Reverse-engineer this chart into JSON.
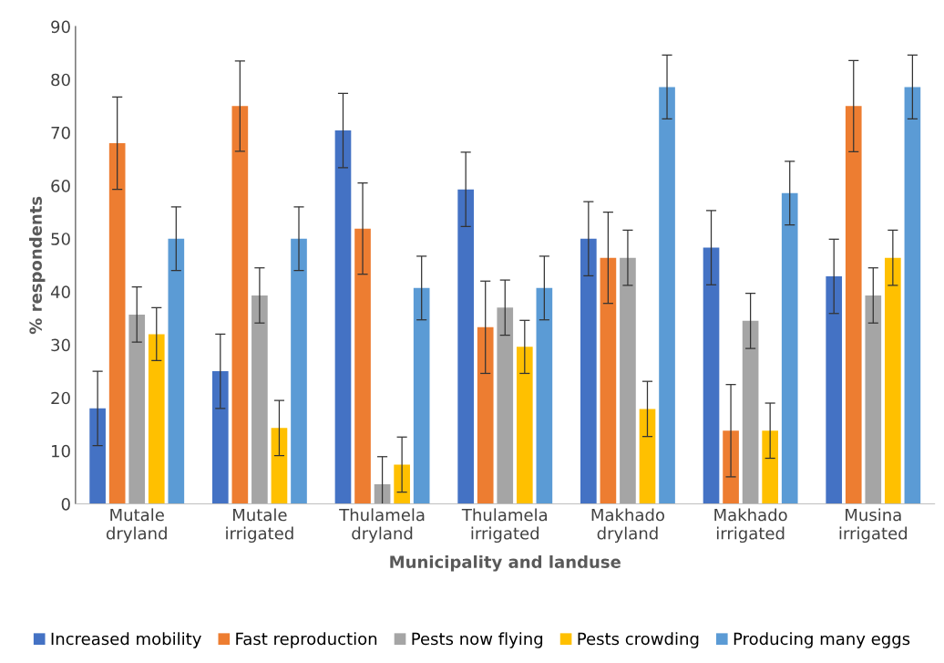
{
  "chart_data": {
    "type": "bar",
    "xlabel": "Municipality and landuse",
    "ylabel": "% respondents",
    "categories": [
      "Mutale\ndryland",
      "Mutale\nirrigated",
      "Thulamela\ndryland",
      "Thulamela\nirrigated",
      "Makhado\ndryland",
      "Makhado\nirrigated",
      "Musina\nirrigated"
    ],
    "series": [
      {
        "name": "Increased mobility",
        "color": "#4472c4",
        "values": [
          18,
          25,
          70.4,
          59.3,
          50,
          48.3,
          42.9
        ],
        "errors": [
          7,
          7,
          7,
          7,
          7,
          7,
          7
        ]
      },
      {
        "name": "Fast reproduction",
        "color": "#ed7d31",
        "values": [
          68,
          75,
          51.9,
          33.3,
          46.4,
          13.8,
          75
        ],
        "errors": [
          8.7,
          8.5,
          8.6,
          8.7,
          8.6,
          8.7,
          8.6
        ]
      },
      {
        "name": "Pests now flying",
        "color": "#a5a5a5",
        "values": [
          35.7,
          39.3,
          3.7,
          37,
          46.4,
          34.5,
          39.3
        ],
        "errors": [
          5.2,
          5.2,
          5.2,
          5.2,
          5.2,
          5.2,
          5.2
        ]
      },
      {
        "name": "Pests crowding",
        "color": "#ffc000",
        "values": [
          32,
          14.3,
          7.4,
          29.6,
          17.9,
          13.8,
          46.4
        ],
        "errors": [
          5,
          5.2,
          5.2,
          5,
          5.2,
          5.2,
          5.2
        ]
      },
      {
        "name": "Producing many eggs",
        "color": "#5b9bd5",
        "values": [
          50,
          50,
          40.7,
          40.7,
          78.6,
          58.6,
          78.6
        ],
        "errors": [
          6,
          6,
          6,
          6,
          6,
          6,
          6
        ]
      }
    ],
    "ylim": [
      0,
      90
    ],
    "yticks": [
      0,
      10,
      20,
      30,
      40,
      50,
      60,
      70,
      80,
      90
    ],
    "grid": false,
    "legend": "bottom"
  }
}
